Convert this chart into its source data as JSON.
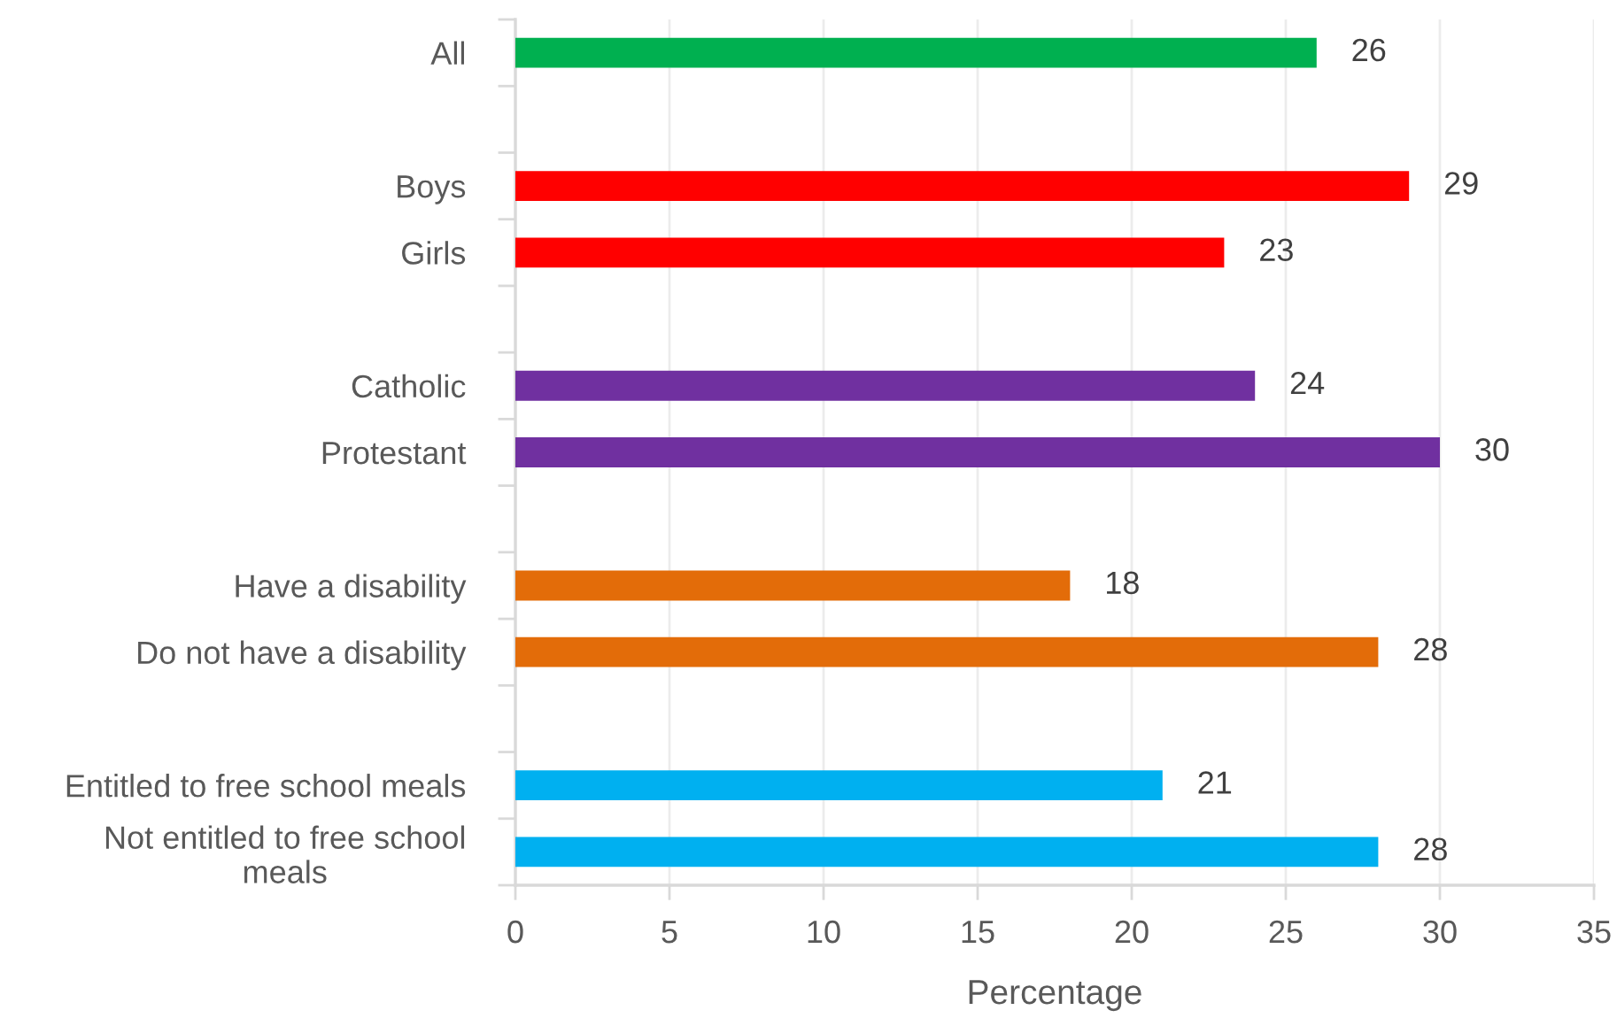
{
  "chart_data": {
    "type": "bar",
    "orientation": "horizontal",
    "xlabel": "Percentage",
    "categories": [
      "All",
      null,
      "Boys",
      "Girls",
      null,
      "Catholic",
      "Protestant",
      null,
      "Have a disability",
      "Do not have a disability",
      null,
      "Entitled to free school meals",
      "Not entitled to free school\nmeals"
    ],
    "values": [
      26,
      null,
      29,
      23,
      null,
      24,
      30,
      null,
      18,
      28,
      null,
      21,
      28
    ],
    "colors": [
      "#00b050",
      null,
      "#ff0000",
      "#ff0000",
      null,
      "#7030a0",
      "#7030a0",
      null,
      "#e36c09",
      "#e36c09",
      null,
      "#00b0f0",
      "#00b0f0"
    ],
    "xlim": [
      0,
      35
    ],
    "xticks": [
      0,
      5,
      10,
      15,
      20,
      25,
      30,
      35
    ],
    "grid": "x",
    "data_labels": true
  }
}
